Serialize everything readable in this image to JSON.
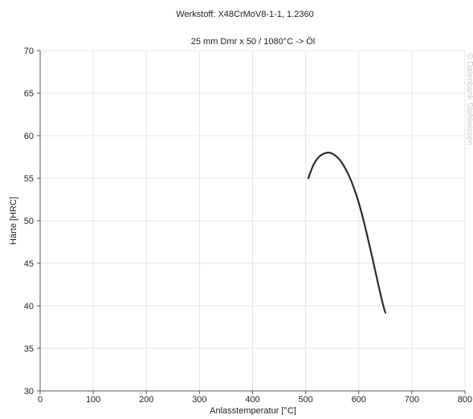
{
  "chart_data": {
    "type": "line",
    "title": "Werkstoff: X48CrMoV8-1-1, 1.2360",
    "subtitle": "25 mm Dmr x 50 / 1080°C -> Öl",
    "xlabel": "Anlasstemperatur [°C]",
    "ylabel": "Härte [HRC]",
    "xlim": [
      0,
      800
    ],
    "ylim": [
      30,
      70
    ],
    "xticks": [
      0,
      100,
      200,
      300,
      400,
      500,
      600,
      700,
      800
    ],
    "yticks": [
      30,
      35,
      40,
      45,
      50,
      55,
      60,
      65,
      70
    ],
    "grid": true,
    "series": [
      {
        "color": "#2b2b2b",
        "x": [
          505,
          515,
          525,
          535,
          545,
          555,
          565,
          575,
          585,
          595,
          605,
          615,
          625,
          635,
          645,
          650
        ],
        "y": [
          55.0,
          56.6,
          57.5,
          57.9,
          58.0,
          57.7,
          57.1,
          56.1,
          54.8,
          53.1,
          51.0,
          48.5,
          45.8,
          43.0,
          40.3,
          39.2
        ]
      }
    ],
    "watermark": "© Datenbank Stahlwissen"
  }
}
